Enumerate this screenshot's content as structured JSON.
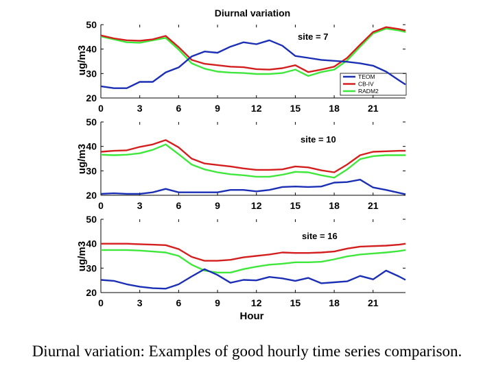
{
  "caption": "Diurnal variation: Examples of good hourly time series comparison.",
  "title": "Diurnal variation",
  "xlabel": "Hour",
  "colors": {
    "TEOM": "#1a2fb5",
    "CB-IV": "#d41e1e",
    "RADM2": "#3ee83a"
  },
  "legend": [
    "TEOM",
    "CB-IV",
    "RADM2"
  ],
  "chart_data": [
    {
      "type": "line",
      "site_label": "site = 7",
      "ylabel": "ug/m3",
      "xlim": [
        0,
        23.5
      ],
      "ylim": [
        20,
        50
      ],
      "xticks": [
        0,
        3,
        6,
        9,
        12,
        15,
        18,
        21
      ],
      "yticks": [
        20,
        30,
        40,
        50
      ],
      "legend": [
        "TEOM",
        "CB-IV",
        "RADM2"
      ],
      "legend_position": "bottom-right",
      "x": [
        0,
        1,
        2,
        3,
        4,
        5,
        6,
        7,
        8,
        9,
        10,
        11,
        12,
        13,
        14,
        15,
        16,
        17,
        18,
        19,
        20,
        21,
        22,
        23,
        23.5
      ],
      "series": [
        {
          "name": "TEOM",
          "values": [
            24.8,
            24,
            24,
            26.6,
            26.6,
            30.5,
            32.5,
            37,
            39,
            38.5,
            41,
            42.8,
            42,
            43.6,
            41.4,
            37.2,
            36.4,
            35.6,
            35.2,
            34.8,
            34.2,
            33.2,
            30.8,
            27.2,
            25.5
          ]
        },
        {
          "name": "CB-IV",
          "values": [
            45.6,
            44.4,
            43.6,
            43.4,
            44,
            45.4,
            40.8,
            35.6,
            34,
            33.4,
            32.8,
            32.6,
            31.8,
            31.6,
            32.2,
            33.4,
            30.6,
            31.6,
            32.8,
            36.4,
            41.8,
            47,
            49,
            48.2,
            47.6
          ]
        },
        {
          "name": "RADM2",
          "values": [
            45.2,
            44,
            42.8,
            42.6,
            43.6,
            44.6,
            39.8,
            34.2,
            32,
            30.8,
            30.4,
            30.2,
            29.8,
            29.8,
            30.2,
            31.6,
            29,
            30.6,
            31.6,
            35.4,
            41,
            46.4,
            48.4,
            47.6,
            47
          ]
        }
      ]
    },
    {
      "type": "line",
      "site_label": "site = 10",
      "ylabel": "ug/m3",
      "xlim": [
        0,
        23.5
      ],
      "ylim": [
        20,
        50
      ],
      "xticks": [
        0,
        3,
        6,
        9,
        12,
        15,
        18,
        21
      ],
      "yticks": [
        20,
        30,
        40,
        50
      ],
      "x": [
        0,
        1,
        2,
        3,
        4,
        5,
        6,
        7,
        8,
        9,
        10,
        11,
        12,
        13,
        14,
        15,
        16,
        17,
        18,
        19,
        20,
        21,
        22,
        23,
        23.5
      ],
      "series": [
        {
          "name": "TEOM",
          "values": [
            20.6,
            20.8,
            20.6,
            20.6,
            21.2,
            22.6,
            21.2,
            21.2,
            21.2,
            21.2,
            22.2,
            22.2,
            21.6,
            22.2,
            23.4,
            23.6,
            23.4,
            23.6,
            25.2,
            25.4,
            26.4,
            23.2,
            22.2,
            21,
            20.4
          ]
        },
        {
          "name": "CB-IV",
          "values": [
            37.8,
            38.2,
            38.4,
            39.8,
            40.8,
            42.6,
            39.6,
            35,
            33,
            32.4,
            31.8,
            31,
            30.4,
            30.4,
            30.6,
            31.8,
            31.4,
            30.2,
            29.4,
            32.6,
            36.4,
            37.8,
            38,
            38.2,
            38.2
          ]
        },
        {
          "name": "RADM2",
          "values": [
            36.6,
            36.4,
            36.6,
            37.2,
            38.6,
            40.8,
            36.8,
            32.6,
            30.6,
            29.4,
            28.6,
            28.2,
            27.6,
            27.6,
            28.4,
            29.6,
            29.4,
            28.2,
            27.2,
            30.6,
            34.8,
            36,
            36.4,
            36.4,
            36.4
          ]
        }
      ]
    },
    {
      "type": "line",
      "site_label": "site = 16",
      "ylabel": "ug/m3",
      "xlim": [
        0,
        23.5
      ],
      "ylim": [
        20,
        50
      ],
      "xticks": [
        0,
        3,
        6,
        9,
        12,
        15,
        18,
        21
      ],
      "yticks": [
        20,
        30,
        40,
        50
      ],
      "x": [
        0,
        1,
        2,
        3,
        4,
        5,
        6,
        7,
        8,
        9,
        10,
        11,
        12,
        13,
        14,
        15,
        16,
        17,
        18,
        19,
        20,
        21,
        22,
        23,
        23.5
      ],
      "series": [
        {
          "name": "TEOM",
          "values": [
            25.2,
            24.8,
            23.4,
            22.4,
            21.8,
            21.6,
            23.4,
            26.6,
            29.6,
            27.2,
            24,
            25.2,
            25,
            26.4,
            25.8,
            24.8,
            26,
            23.8,
            24.2,
            24.6,
            26.8,
            25.4,
            29,
            26.6,
            25.2
          ]
        },
        {
          "name": "CB-IV",
          "values": [
            40,
            40,
            40,
            39.8,
            39.6,
            39.4,
            37.8,
            34.6,
            33,
            33,
            33.4,
            34.4,
            35,
            35.6,
            36.4,
            36.2,
            36.2,
            36.4,
            36.8,
            38,
            38.8,
            39,
            39.2,
            39.6,
            40
          ]
        },
        {
          "name": "RADM2",
          "values": [
            37.4,
            37.4,
            37.4,
            37.2,
            36.8,
            36.4,
            35,
            31.4,
            29,
            28.2,
            28.2,
            29.6,
            30.6,
            31.4,
            31.8,
            32.4,
            32.4,
            32.6,
            33.6,
            34.8,
            35.6,
            36,
            36.4,
            37,
            37.4
          ]
        }
      ]
    }
  ]
}
